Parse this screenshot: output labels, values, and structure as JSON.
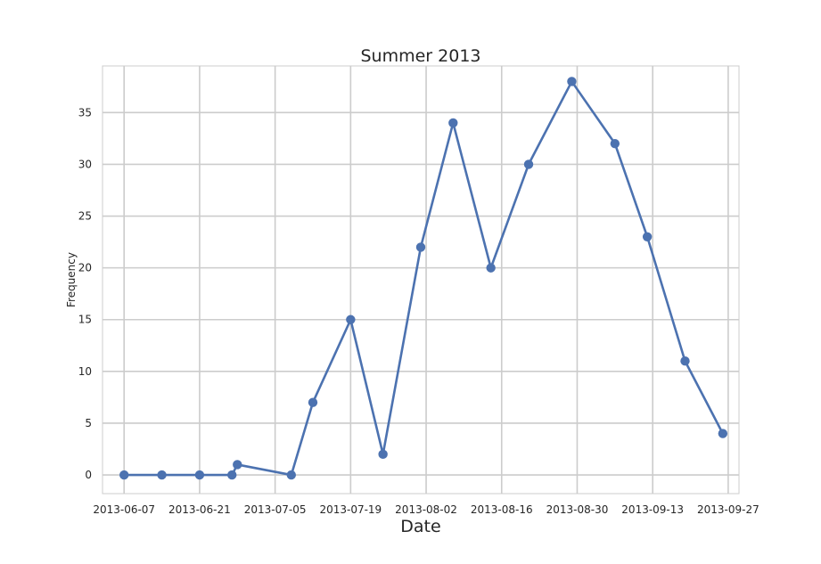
{
  "chart_data": {
    "type": "line",
    "title": "Summer 2013",
    "xlabel": "Date",
    "ylabel": "Frequency",
    "xlim": [
      "2013-06-03",
      "2013-09-29"
    ],
    "ylim": [
      -1.8,
      39.5
    ],
    "grid": true,
    "x_ticks": [
      "2013-06-07",
      "2013-06-21",
      "2013-07-05",
      "2013-07-19",
      "2013-08-02",
      "2013-08-16",
      "2013-08-30",
      "2013-09-13",
      "2013-09-27"
    ],
    "y_ticks": [
      0,
      5,
      10,
      15,
      20,
      25,
      30,
      35
    ],
    "series": [
      {
        "color": "#4c72b0",
        "x": [
          "2013-06-07",
          "2013-06-14",
          "2013-06-21",
          "2013-06-27",
          "2013-06-28",
          "2013-07-08",
          "2013-07-12",
          "2013-07-19",
          "2013-07-25",
          "2013-08-01",
          "2013-08-07",
          "2013-08-14",
          "2013-08-21",
          "2013-08-29",
          "2013-09-06",
          "2013-09-12",
          "2013-09-19",
          "2013-09-26"
        ],
        "values": [
          0,
          0,
          0,
          0,
          1,
          0,
          7,
          15,
          2,
          22,
          34,
          20,
          30,
          38,
          32,
          23,
          11,
          4
        ]
      }
    ]
  }
}
